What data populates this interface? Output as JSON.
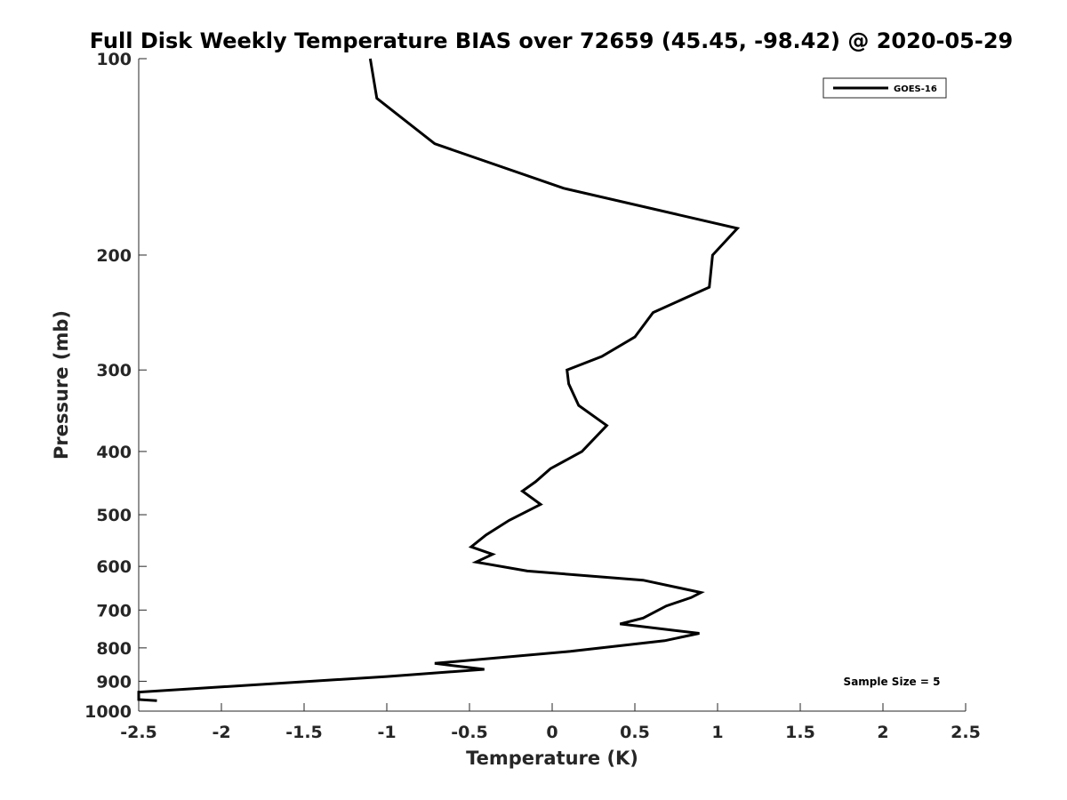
{
  "chart_data": {
    "type": "line",
    "title": "Full Disk Weekly Temperature BIAS over 72659 (45.45, -98.42) @ 2020-05-29",
    "xlabel": "Temperature (K)",
    "ylabel": "Pressure (mb)",
    "xlim": [
      -2.5,
      2.5
    ],
    "ylim": [
      100,
      1000
    ],
    "y_scale": "log",
    "y_reversed": true,
    "x_ticks": [
      -2.5,
      -2,
      -1.5,
      -1,
      -0.5,
      0,
      0.5,
      1,
      1.5,
      2,
      2.5
    ],
    "x_tick_labels": [
      "-2.5",
      "-2",
      "-1.5",
      "-1",
      "-0.5",
      "0",
      "0.5",
      "1",
      "1.5",
      "2",
      "2.5"
    ],
    "y_ticks": [
      100,
      200,
      300,
      400,
      500,
      600,
      700,
      800,
      900,
      1000
    ],
    "y_tick_labels": [
      "100",
      "200",
      "300",
      "400",
      "500",
      "600",
      "700",
      "800",
      "900",
      "1000"
    ],
    "grid": false,
    "legend_position": "top-right",
    "series": [
      {
        "name": "GOES-16",
        "color": "#000000",
        "points": [
          {
            "t": -1.1,
            "p": 100
          },
          {
            "t": -1.06,
            "p": 115
          },
          {
            "t": -0.71,
            "p": 135
          },
          {
            "t": 0.07,
            "p": 158
          },
          {
            "t": 1.12,
            "p": 182
          },
          {
            "t": 0.97,
            "p": 200
          },
          {
            "t": 0.95,
            "p": 224
          },
          {
            "t": 0.61,
            "p": 245
          },
          {
            "t": 0.5,
            "p": 267
          },
          {
            "t": 0.3,
            "p": 286
          },
          {
            "t": 0.09,
            "p": 300
          },
          {
            "t": 0.1,
            "p": 315
          },
          {
            "t": 0.16,
            "p": 340
          },
          {
            "t": 0.33,
            "p": 365
          },
          {
            "t": 0.18,
            "p": 400
          },
          {
            "t": -0.01,
            "p": 425
          },
          {
            "t": -0.1,
            "p": 445
          },
          {
            "t": -0.18,
            "p": 460
          },
          {
            "t": -0.07,
            "p": 482
          },
          {
            "t": -0.26,
            "p": 510
          },
          {
            "t": -0.4,
            "p": 537
          },
          {
            "t": -0.49,
            "p": 560
          },
          {
            "t": -0.36,
            "p": 575
          },
          {
            "t": -0.46,
            "p": 591
          },
          {
            "t": -0.15,
            "p": 610
          },
          {
            "t": 0.55,
            "p": 630
          },
          {
            "t": 0.9,
            "p": 658
          },
          {
            "t": 0.84,
            "p": 670
          },
          {
            "t": 0.69,
            "p": 690
          },
          {
            "t": 0.55,
            "p": 720
          },
          {
            "t": 0.41,
            "p": 735
          },
          {
            "t": 0.89,
            "p": 760
          },
          {
            "t": 0.68,
            "p": 780
          },
          {
            "t": 0.11,
            "p": 810
          },
          {
            "t": -0.71,
            "p": 845
          },
          {
            "t": -0.41,
            "p": 863
          },
          {
            "t": -1.0,
            "p": 885
          },
          {
            "t": -2.5,
            "p": 935
          },
          {
            "t": -2.5,
            "p": 960
          },
          {
            "t": -2.39,
            "p": 964
          }
        ]
      }
    ],
    "annotation": "Sample Size = 5"
  }
}
